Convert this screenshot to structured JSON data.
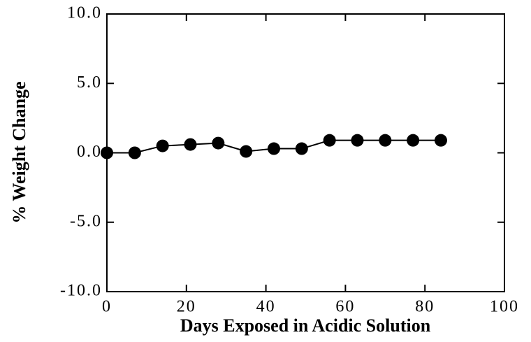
{
  "chart_data": {
    "type": "line",
    "x_label": "Days Exposed in Acidic Solution",
    "y_label": "% Weight Change",
    "x": [
      0,
      7,
      14,
      21,
      28,
      35,
      42,
      49,
      56,
      63,
      70,
      77,
      84
    ],
    "series": [
      {
        "color": "#000000",
        "values": [
          0,
          0,
          0.5,
          0.6,
          0.7,
          0.1,
          0.3,
          0.3,
          0.9,
          0.9,
          0.9,
          0.9,
          0.9
        ]
      }
    ],
    "xlim": [
      0,
      100
    ],
    "xticks": [
      0,
      20,
      40,
      60,
      80,
      100
    ],
    "ylim": [
      -10,
      10
    ],
    "yticks": [
      {
        "value": -10,
        "label": "-10.0"
      },
      {
        "value": -5,
        "label": "-5.0"
      },
      {
        "value": 0,
        "label": "0.0"
      },
      {
        "value": 5,
        "label": "5.0"
      },
      {
        "value": 10,
        "label": "10.0"
      }
    ],
    "grid": false
  }
}
